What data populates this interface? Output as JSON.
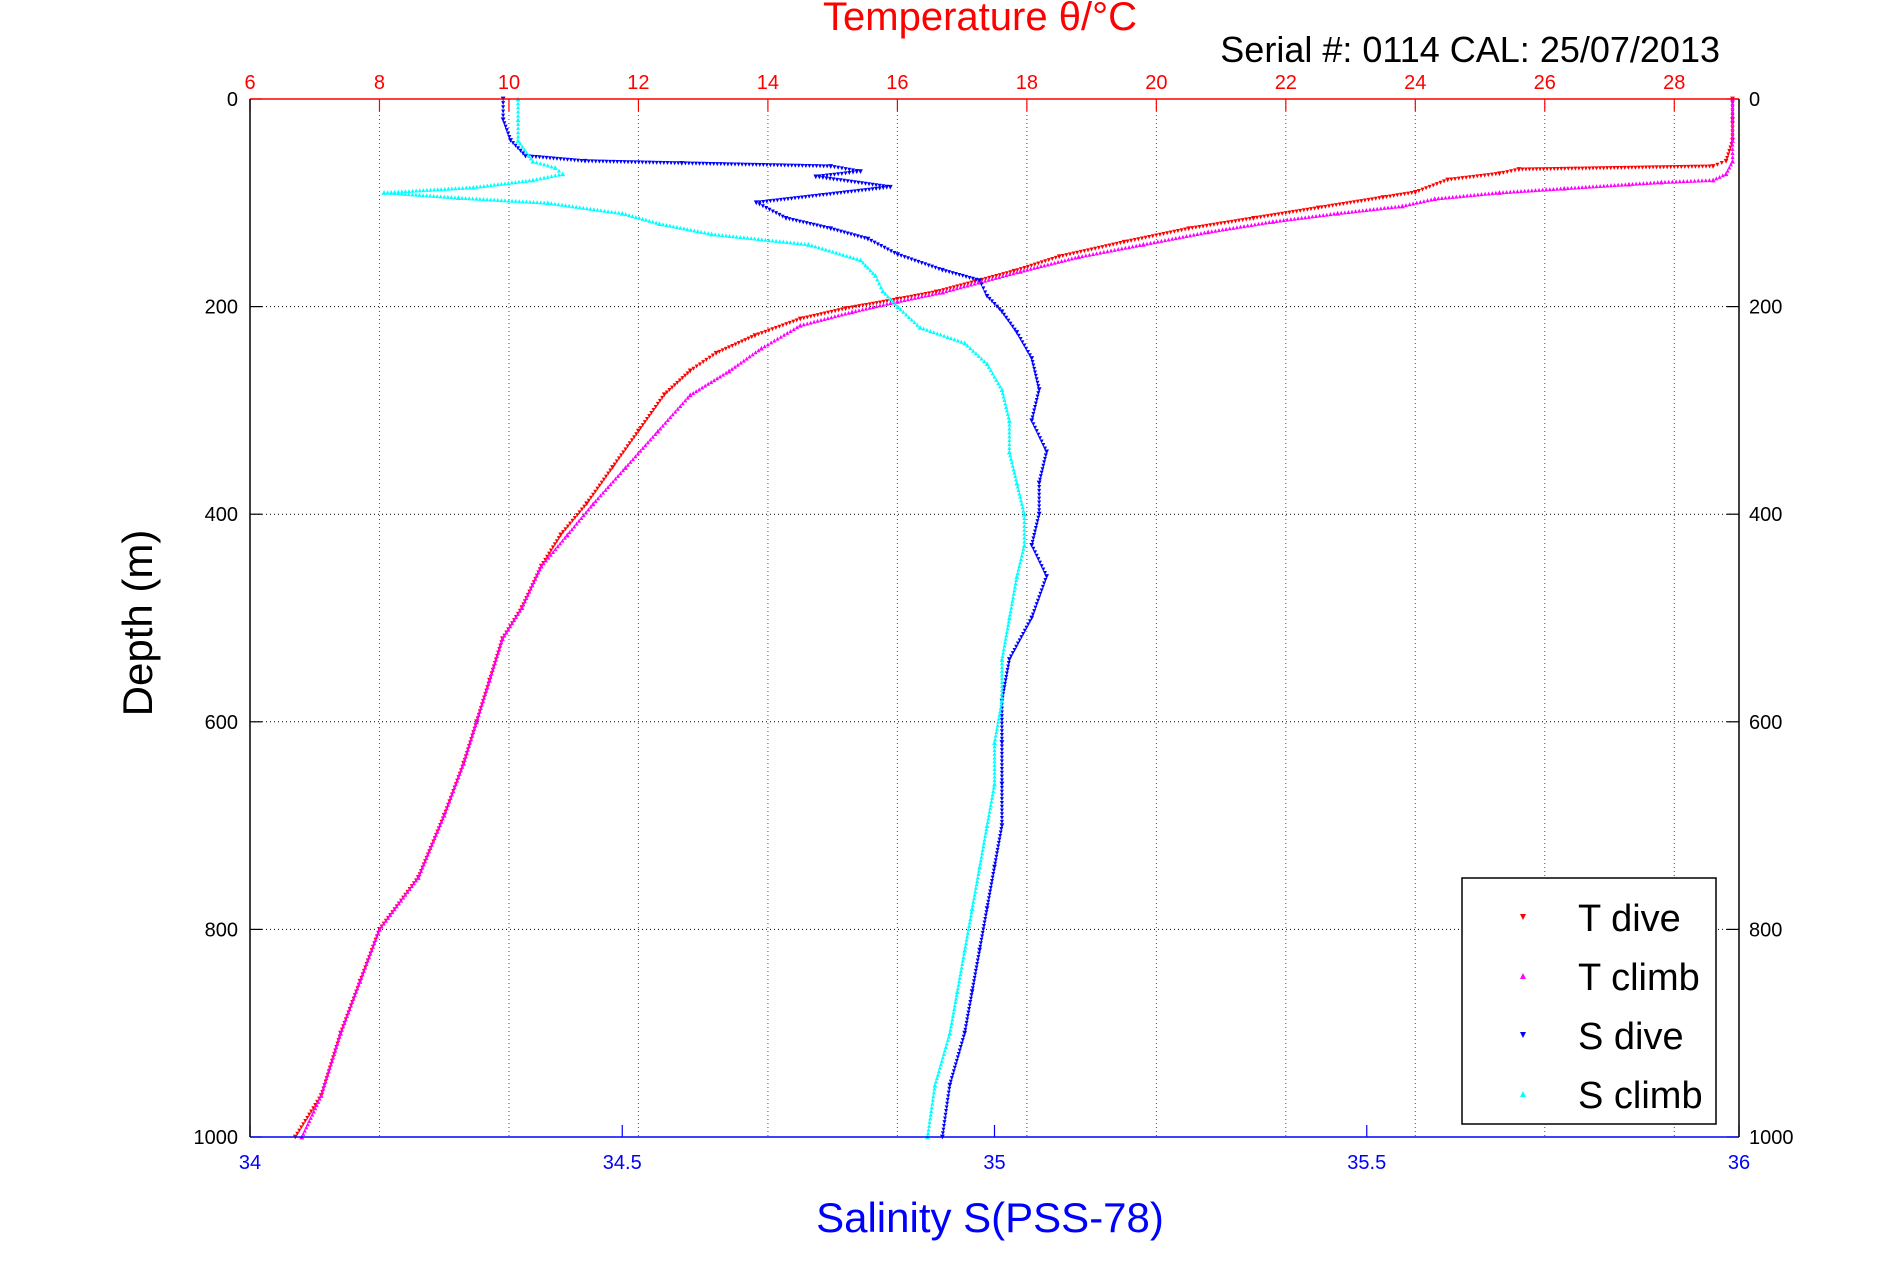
{
  "chart_data": {
    "type": "scatter",
    "title": "Temperature θ/°C",
    "annotation": "Serial #: 0114  CAL: 25/07/2013",
    "xlabel_bottom": "Salinity S(PSS-78)",
    "xlabel_top": "Temperature θ/°C",
    "ylabel": "Depth (m)",
    "ylim": [
      0,
      1000
    ],
    "y_reversed": true,
    "xlim_bottom": [
      34,
      36
    ],
    "xlim_top": [
      6,
      29
    ],
    "x_ticks_bottom": [
      34,
      34.5,
      35,
      35.5,
      36
    ],
    "x_tick_labels_bottom": [
      "34",
      "34.5",
      "35",
      "35.5",
      "36"
    ],
    "x_ticks_top": [
      6,
      8,
      10,
      12,
      14,
      16,
      18,
      20,
      22,
      24,
      26,
      28
    ],
    "x_tick_labels_top": [
      "6",
      "8",
      "10",
      "12",
      "14",
      "16",
      "18",
      "20",
      "22",
      "24",
      "26",
      "28"
    ],
    "y_ticks": [
      0,
      200,
      400,
      600,
      800,
      1000
    ],
    "y_tick_labels": [
      "0",
      "200",
      "400",
      "600",
      "800",
      "1000"
    ],
    "grid": true,
    "legend_position": "bottom-right",
    "colors": {
      "temperature_axis": "#ff0000",
      "salinity_axis": "#0000ff",
      "grid_vertical": "#ff0000",
      "grid_horizontal": "#000000"
    },
    "series": [
      {
        "name": "T dive",
        "axis": "top",
        "marker": "triangle-down",
        "color": "#ff0000",
        "points": [
          [
            28.9,
            0
          ],
          [
            28.9,
            20
          ],
          [
            28.9,
            40
          ],
          [
            28.8,
            60
          ],
          [
            28.6,
            65
          ],
          [
            25.6,
            68
          ],
          [
            25.3,
            72
          ],
          [
            24.5,
            78
          ],
          [
            24.0,
            90
          ],
          [
            23.5,
            95
          ],
          [
            22.5,
            105
          ],
          [
            21.5,
            115
          ],
          [
            20.5,
            125
          ],
          [
            19.5,
            138
          ],
          [
            18.5,
            152
          ],
          [
            17.8,
            166
          ],
          [
            17.2,
            176
          ],
          [
            16.6,
            186
          ],
          [
            16.0,
            193
          ],
          [
            15.2,
            202
          ],
          [
            14.5,
            212
          ],
          [
            13.8,
            228
          ],
          [
            13.2,
            245
          ],
          [
            12.8,
            262
          ],
          [
            12.4,
            285
          ],
          [
            12.0,
            320
          ],
          [
            11.6,
            355
          ],
          [
            11.2,
            390
          ],
          [
            10.8,
            420
          ],
          [
            10.5,
            450
          ],
          [
            10.2,
            490
          ],
          [
            9.9,
            520
          ],
          [
            9.7,
            560
          ],
          [
            9.5,
            600
          ],
          [
            9.3,
            640
          ],
          [
            9.0,
            690
          ],
          [
            8.6,
            750
          ],
          [
            8.0,
            800
          ],
          [
            7.7,
            850
          ],
          [
            7.4,
            900
          ],
          [
            7.1,
            960
          ],
          [
            6.7,
            1000
          ]
        ]
      },
      {
        "name": "T climb",
        "axis": "top",
        "marker": "triangle-up",
        "color": "#ff00ff",
        "points": [
          [
            6.8,
            1000
          ],
          [
            7.1,
            960
          ],
          [
            7.4,
            900
          ],
          [
            7.7,
            850
          ],
          [
            8.0,
            800
          ],
          [
            8.6,
            750
          ],
          [
            9.0,
            690
          ],
          [
            9.3,
            640
          ],
          [
            9.5,
            600
          ],
          [
            9.7,
            560
          ],
          [
            9.9,
            520
          ],
          [
            10.2,
            490
          ],
          [
            10.5,
            450
          ],
          [
            10.9,
            420
          ],
          [
            11.3,
            390
          ],
          [
            11.8,
            355
          ],
          [
            12.3,
            320
          ],
          [
            12.8,
            285
          ],
          [
            13.4,
            262
          ],
          [
            13.9,
            240
          ],
          [
            14.5,
            218
          ],
          [
            15.3,
            205
          ],
          [
            16.0,
            195
          ],
          [
            16.7,
            186
          ],
          [
            17.3,
            176
          ],
          [
            17.9,
            166
          ],
          [
            18.8,
            152
          ],
          [
            19.8,
            140
          ],
          [
            20.8,
            128
          ],
          [
            21.8,
            118
          ],
          [
            22.8,
            110
          ],
          [
            23.8,
            103
          ],
          [
            24.3,
            96
          ],
          [
            25.3,
            90
          ],
          [
            26.3,
            86
          ],
          [
            27.3,
            82
          ],
          [
            27.8,
            80
          ],
          [
            28.6,
            78
          ],
          [
            28.8,
            72
          ],
          [
            28.9,
            60
          ],
          [
            28.9,
            40
          ],
          [
            28.9,
            20
          ],
          [
            28.9,
            0
          ]
        ]
      },
      {
        "name": "S dive",
        "axis": "bottom",
        "marker": "triangle-down",
        "color": "#0000ff",
        "points": [
          [
            34.34,
            0
          ],
          [
            34.34,
            20
          ],
          [
            34.35,
            40
          ],
          [
            34.37,
            55
          ],
          [
            34.45,
            60
          ],
          [
            34.58,
            62
          ],
          [
            34.78,
            65
          ],
          [
            34.82,
            70
          ],
          [
            34.76,
            75
          ],
          [
            34.86,
            85
          ],
          [
            34.68,
            100
          ],
          [
            34.72,
            115
          ],
          [
            34.78,
            125
          ],
          [
            34.83,
            135
          ],
          [
            34.87,
            150
          ],
          [
            34.93,
            165
          ],
          [
            34.98,
            175
          ],
          [
            34.99,
            190
          ],
          [
            35.01,
            205
          ],
          [
            35.03,
            225
          ],
          [
            35.05,
            250
          ],
          [
            35.06,
            280
          ],
          [
            35.05,
            310
          ],
          [
            35.07,
            340
          ],
          [
            35.06,
            370
          ],
          [
            35.06,
            400
          ],
          [
            35.05,
            430
          ],
          [
            35.07,
            460
          ],
          [
            35.05,
            500
          ],
          [
            35.02,
            540
          ],
          [
            35.01,
            580
          ],
          [
            35.01,
            620
          ],
          [
            35.01,
            660
          ],
          [
            35.01,
            700
          ],
          [
            35.0,
            740
          ],
          [
            34.99,
            780
          ],
          [
            34.98,
            820
          ],
          [
            34.97,
            860
          ],
          [
            34.96,
            900
          ],
          [
            34.94,
            950
          ],
          [
            34.93,
            1000
          ]
        ]
      },
      {
        "name": "S climb",
        "axis": "bottom",
        "marker": "triangle-up",
        "color": "#00ffff",
        "points": [
          [
            34.91,
            1000
          ],
          [
            34.92,
            950
          ],
          [
            34.94,
            900
          ],
          [
            34.95,
            860
          ],
          [
            34.96,
            820
          ],
          [
            34.97,
            780
          ],
          [
            34.98,
            740
          ],
          [
            34.99,
            700
          ],
          [
            35.0,
            660
          ],
          [
            35.0,
            620
          ],
          [
            35.01,
            580
          ],
          [
            35.01,
            540
          ],
          [
            35.02,
            500
          ],
          [
            35.03,
            460
          ],
          [
            35.04,
            430
          ],
          [
            35.04,
            400
          ],
          [
            35.03,
            370
          ],
          [
            35.02,
            340
          ],
          [
            35.02,
            310
          ],
          [
            35.01,
            280
          ],
          [
            34.99,
            255
          ],
          [
            34.96,
            235
          ],
          [
            34.9,
            220
          ],
          [
            34.87,
            200
          ],
          [
            34.85,
            185
          ],
          [
            34.84,
            170
          ],
          [
            34.82,
            155
          ],
          [
            34.75,
            140
          ],
          [
            34.62,
            130
          ],
          [
            34.55,
            120
          ],
          [
            34.5,
            110
          ],
          [
            34.4,
            100
          ],
          [
            34.28,
            95
          ],
          [
            34.18,
            90
          ],
          [
            34.3,
            85
          ],
          [
            34.38,
            78
          ],
          [
            34.42,
            72
          ],
          [
            34.41,
            66
          ],
          [
            34.38,
            60
          ],
          [
            34.36,
            40
          ],
          [
            34.36,
            20
          ],
          [
            34.36,
            0
          ]
        ]
      }
    ]
  }
}
